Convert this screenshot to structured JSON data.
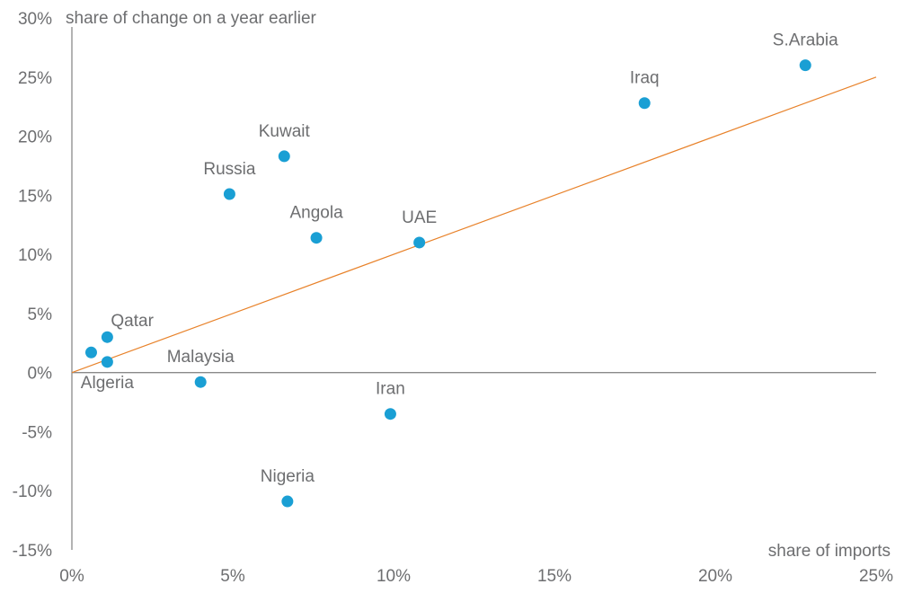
{
  "chart_data": {
    "type": "scatter",
    "ylabel": "share of change on a year earlier",
    "xlabel": "share of imports",
    "xlim": [
      0,
      25
    ],
    "ylim": [
      -15,
      30
    ],
    "x_ticks": [
      0,
      5,
      10,
      15,
      20,
      25
    ],
    "y_ticks": [
      -15,
      -10,
      -5,
      0,
      5,
      10,
      15,
      20,
      25,
      30
    ],
    "tick_suffix": "%",
    "points": [
      {
        "label": "S.Arabia",
        "x": 22.8,
        "y": 26.0,
        "label_pos": "above"
      },
      {
        "label": "Iraq",
        "x": 17.8,
        "y": 22.8,
        "label_pos": "above"
      },
      {
        "label": "Kuwait",
        "x": 6.6,
        "y": 18.3,
        "label_pos": "above"
      },
      {
        "label": "Russia",
        "x": 4.9,
        "y": 15.1,
        "label_pos": "above"
      },
      {
        "label": "Angola",
        "x": 7.6,
        "y": 11.4,
        "label_pos": "above"
      },
      {
        "label": "UAE",
        "x": 10.8,
        "y": 11.0,
        "label_pos": "above"
      },
      {
        "label": "Qatar",
        "x": 1.1,
        "y": 3.0,
        "label_pos": "above-right"
      },
      {
        "label": "",
        "x": 0.6,
        "y": 1.7,
        "label_pos": "none"
      },
      {
        "label": "Algeria",
        "x": 1.1,
        "y": 0.9,
        "label_pos": "below"
      },
      {
        "label": "Malaysia",
        "x": 4.0,
        "y": -0.8,
        "label_pos": "above"
      },
      {
        "label": "Iran",
        "x": 9.9,
        "y": -3.5,
        "label_pos": "above"
      },
      {
        "label": "Nigeria",
        "x": 6.7,
        "y": -10.9,
        "label_pos": "above"
      }
    ],
    "trendline": {
      "from": [
        0,
        0
      ],
      "to": [
        25,
        25
      ]
    },
    "colors": {
      "point": "#1a9fd4",
      "trend": "#e8822a",
      "axis": "#8a8a8a",
      "text": "#6d6e70"
    }
  }
}
